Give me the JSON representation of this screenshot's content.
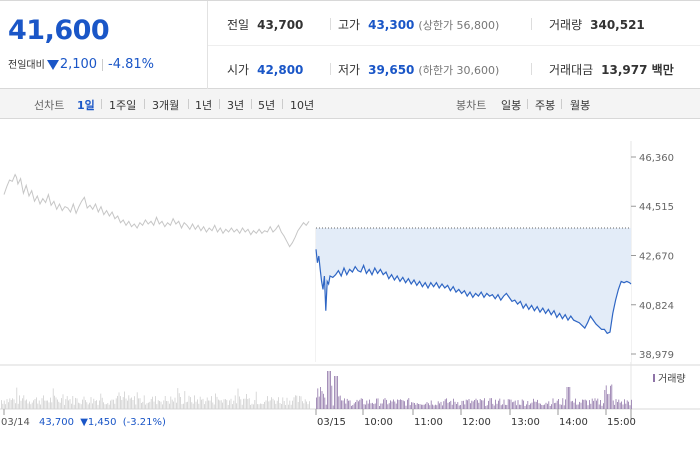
{
  "summary": {
    "current_price": "41,600",
    "change_label": "전일대비",
    "change_amount": "2,100",
    "change_pct": "-4.81%",
    "stats": {
      "prev_close": {
        "label": "전일",
        "value": "43,700"
      },
      "high": {
        "label": "고가",
        "value": "43,300",
        "sub": "(상한가 56,800)"
      },
      "volume": {
        "label": "거래량",
        "value": "340,521"
      },
      "open": {
        "label": "시가",
        "value": "42,800"
      },
      "low": {
        "label": "저가",
        "value": "39,650",
        "sub": "(하한가 30,600)"
      },
      "trade_value": {
        "label": "거래대금",
        "value": "13,977 백만"
      }
    }
  },
  "period_bar": {
    "line_label": "선차트",
    "line_periods": [
      "1일",
      "1주일",
      "3개월",
      "1년",
      "3년",
      "5년",
      "10년"
    ],
    "active_period": "1일",
    "candle_label": "봉차트",
    "candle_periods": [
      "일봉",
      "주봉",
      "월봉"
    ]
  },
  "colors": {
    "today_line": "#2f66c4",
    "today_fill": "#e3ecf8",
    "prev_line": "#c6c6c6",
    "volume_bar": "#8f74a8",
    "accent_blue": "#1a56c7"
  },
  "chart_data": {
    "type": "line",
    "y_ticks": [
      "46,360",
      "44,515",
      "42,670",
      "40,824",
      "38,979"
    ],
    "ylim": [
      38979,
      46360
    ],
    "reference_line": 43700,
    "legend": "거래량",
    "prev_day_caption": {
      "date": "03/14",
      "price": "43,700",
      "change": "▼1,450",
      "pct": "(-3.21%)"
    },
    "x_labels": [
      "03/15",
      "10:00",
      "11:00",
      "12:00",
      "13:00",
      "14:00",
      "15:00"
    ],
    "series": [
      {
        "day": "03/14",
        "points": [
          [
            0,
            44950
          ],
          [
            2,
            45250
          ],
          [
            4,
            45500
          ],
          [
            6,
            45450
          ],
          [
            8,
            45700
          ],
          [
            9,
            45600
          ],
          [
            10,
            45350
          ],
          [
            12,
            45550
          ],
          [
            14,
            45000
          ],
          [
            16,
            45300
          ],
          [
            18,
            44900
          ],
          [
            20,
            45100
          ],
          [
            22,
            44700
          ],
          [
            24,
            44900
          ],
          [
            26,
            44600
          ],
          [
            28,
            44800
          ],
          [
            30,
            44650
          ],
          [
            32,
            44950
          ],
          [
            34,
            44550
          ],
          [
            36,
            44700
          ],
          [
            38,
            44400
          ],
          [
            40,
            44600
          ],
          [
            42,
            44350
          ],
          [
            44,
            44500
          ],
          [
            46,
            44450
          ],
          [
            48,
            44300
          ],
          [
            50,
            44600
          ],
          [
            52,
            44250
          ],
          [
            54,
            44500
          ],
          [
            56,
            44700
          ],
          [
            58,
            44850
          ],
          [
            60,
            44450
          ],
          [
            62,
            44550
          ],
          [
            64,
            44400
          ],
          [
            66,
            44600
          ],
          [
            68,
            44300
          ],
          [
            70,
            44500
          ],
          [
            72,
            44200
          ],
          [
            74,
            44350
          ],
          [
            76,
            44150
          ],
          [
            78,
            44300
          ],
          [
            80,
            44050
          ],
          [
            82,
            44150
          ],
          [
            84,
            43900
          ],
          [
            86,
            44000
          ],
          [
            88,
            43800
          ],
          [
            90,
            43950
          ],
          [
            92,
            43750
          ],
          [
            94,
            43850
          ],
          [
            96,
            43700
          ],
          [
            98,
            43900
          ],
          [
            100,
            43800
          ],
          [
            102,
            44000
          ],
          [
            104,
            43850
          ],
          [
            106,
            43950
          ],
          [
            108,
            43800
          ],
          [
            110,
            44100
          ],
          [
            112,
            43850
          ],
          [
            114,
            43950
          ],
          [
            116,
            43750
          ],
          [
            118,
            43900
          ],
          [
            120,
            43800
          ],
          [
            122,
            44050
          ],
          [
            124,
            43850
          ],
          [
            126,
            43950
          ],
          [
            128,
            43700
          ],
          [
            130,
            43900
          ],
          [
            132,
            43800
          ],
          [
            134,
            43650
          ],
          [
            136,
            43850
          ],
          [
            138,
            43650
          ],
          [
            140,
            43800
          ],
          [
            142,
            43600
          ],
          [
            144,
            43750
          ],
          [
            146,
            43550
          ],
          [
            148,
            43700
          ],
          [
            150,
            43600
          ],
          [
            152,
            43800
          ],
          [
            154,
            43550
          ],
          [
            156,
            43700
          ],
          [
            158,
            43500
          ],
          [
            160,
            43650
          ],
          [
            162,
            43550
          ],
          [
            164,
            43700
          ],
          [
            166,
            43550
          ],
          [
            168,
            43650
          ],
          [
            170,
            43500
          ],
          [
            172,
            43700
          ],
          [
            174,
            43550
          ],
          [
            176,
            43650
          ],
          [
            178,
            43450
          ],
          [
            180,
            43600
          ],
          [
            182,
            43500
          ],
          [
            184,
            43650
          ],
          [
            186,
            43500
          ],
          [
            188,
            43600
          ],
          [
            190,
            43550
          ],
          [
            192,
            43750
          ],
          [
            194,
            43550
          ],
          [
            196,
            43650
          ],
          [
            198,
            43800
          ],
          [
            200,
            43550
          ],
          [
            202,
            43400
          ],
          [
            204,
            43200
          ],
          [
            206,
            43000
          ],
          [
            208,
            43150
          ],
          [
            210,
            43350
          ],
          [
            212,
            43600
          ],
          [
            214,
            43750
          ],
          [
            216,
            43900
          ],
          [
            218,
            43800
          ],
          [
            220,
            43950
          ]
        ]
      },
      {
        "day": "03/15",
        "points": [
          [
            0,
            42900
          ],
          [
            1,
            42400
          ],
          [
            2,
            42650
          ],
          [
            3,
            42150
          ],
          [
            4,
            41700
          ],
          [
            5,
            41400
          ],
          [
            6,
            41900
          ],
          [
            7,
            40600
          ],
          [
            8,
            41700
          ],
          [
            9,
            41600
          ],
          [
            10,
            41900
          ],
          [
            12,
            41850
          ],
          [
            14,
            41950
          ],
          [
            16,
            42100
          ],
          [
            18,
            41900
          ],
          [
            20,
            42200
          ],
          [
            22,
            41950
          ],
          [
            24,
            42150
          ],
          [
            26,
            42050
          ],
          [
            28,
            42250
          ],
          [
            30,
            42100
          ],
          [
            32,
            42050
          ],
          [
            34,
            42300
          ],
          [
            36,
            42000
          ],
          [
            38,
            42150
          ],
          [
            40,
            41950
          ],
          [
            42,
            42200
          ],
          [
            44,
            42000
          ],
          [
            46,
            42150
          ],
          [
            48,
            41950
          ],
          [
            50,
            42050
          ],
          [
            52,
            41800
          ],
          [
            54,
            41950
          ],
          [
            56,
            41750
          ],
          [
            58,
            41900
          ],
          [
            60,
            41700
          ],
          [
            62,
            41850
          ],
          [
            64,
            41650
          ],
          [
            66,
            41800
          ],
          [
            68,
            41600
          ],
          [
            70,
            41750
          ],
          [
            72,
            41550
          ],
          [
            74,
            41700
          ],
          [
            76,
            41500
          ],
          [
            78,
            41650
          ],
          [
            80,
            41450
          ],
          [
            82,
            41650
          ],
          [
            84,
            41500
          ],
          [
            86,
            41650
          ],
          [
            88,
            41450
          ],
          [
            90,
            41600
          ],
          [
            92,
            41450
          ],
          [
            94,
            41550
          ],
          [
            96,
            41350
          ],
          [
            98,
            41500
          ],
          [
            100,
            41300
          ],
          [
            102,
            41400
          ],
          [
            104,
            41250
          ],
          [
            106,
            41350
          ],
          [
            108,
            41150
          ],
          [
            110,
            41300
          ],
          [
            112,
            41100
          ],
          [
            114,
            41250
          ],
          [
            116,
            41150
          ],
          [
            118,
            41300
          ],
          [
            120,
            41100
          ],
          [
            122,
            41250
          ],
          [
            124,
            41150
          ],
          [
            126,
            41200
          ],
          [
            128,
            41050
          ],
          [
            130,
            41200
          ],
          [
            132,
            41000
          ],
          [
            134,
            41150
          ],
          [
            136,
            41250
          ],
          [
            138,
            41100
          ],
          [
            140,
            40950
          ],
          [
            142,
            41000
          ],
          [
            144,
            40850
          ],
          [
            146,
            40950
          ],
          [
            148,
            40700
          ],
          [
            150,
            40850
          ],
          [
            152,
            40650
          ],
          [
            154,
            40800
          ],
          [
            156,
            40600
          ],
          [
            158,
            40750
          ],
          [
            160,
            40550
          ],
          [
            162,
            40700
          ],
          [
            164,
            40500
          ],
          [
            166,
            40650
          ],
          [
            168,
            40450
          ],
          [
            170,
            40600
          ],
          [
            172,
            40350
          ],
          [
            174,
            40500
          ],
          [
            176,
            40300
          ],
          [
            178,
            40450
          ],
          [
            180,
            40250
          ],
          [
            182,
            40400
          ],
          [
            184,
            40250
          ],
          [
            186,
            40200
          ],
          [
            188,
            40150
          ],
          [
            190,
            40050
          ],
          [
            192,
            39950
          ],
          [
            194,
            40150
          ],
          [
            196,
            40400
          ],
          [
            198,
            40250
          ],
          [
            200,
            40100
          ],
          [
            202,
            40000
          ],
          [
            204,
            39900
          ],
          [
            206,
            39900
          ],
          [
            208,
            39750
          ],
          [
            210,
            39800
          ],
          [
            212,
            40500
          ],
          [
            214,
            41000
          ],
          [
            216,
            41400
          ],
          [
            218,
            41700
          ],
          [
            220,
            41650
          ],
          [
            222,
            41700
          ],
          [
            224,
            41650
          ],
          [
            225,
            41600
          ]
        ]
      }
    ]
  }
}
